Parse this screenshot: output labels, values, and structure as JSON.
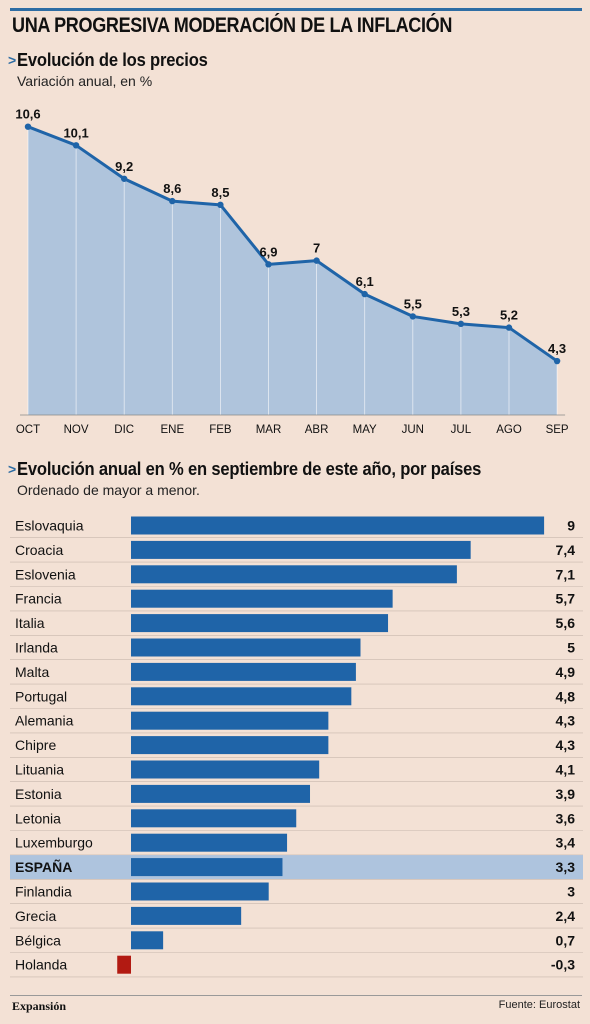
{
  "header": {
    "title": "UNA PROGRESIVA MODERACIÓN DE LA INFLACIÓN"
  },
  "section1": {
    "arrow": ">",
    "title": "Evolución de los precios",
    "subtitle": "Variación anual, en %"
  },
  "section2": {
    "arrow": ">",
    "title": "Evolución anual en % en septiembre de este año, por países",
    "subtitle": "Ordenado de mayor a menor."
  },
  "footer": {
    "brand": "Expansión",
    "source": "Fuente: Eurostat"
  },
  "colors": {
    "line": "#1f64a8",
    "area": "#afc4dc",
    "bar": "#1f64a8",
    "negative": "#b21a12",
    "highlight": "#aec4de",
    "background": "#f3e1d5"
  },
  "chart_data": [
    {
      "type": "area",
      "title": "Evolución de los precios",
      "subtitle": "Variación anual, en %",
      "categories": [
        "OCT",
        "NOV",
        "DIC",
        "ENE",
        "FEB",
        "MAR",
        "ABR",
        "MAY",
        "JUN",
        "JUL",
        "AGO",
        "SEP"
      ],
      "values": [
        10.6,
        10.1,
        9.2,
        8.6,
        8.5,
        6.9,
        7,
        6.1,
        5.5,
        5.3,
        5.2,
        4.3
      ],
      "labels": [
        "10,6",
        "10,1",
        "9,2",
        "8,6",
        "8,5",
        "6,9",
        "7",
        "6,1",
        "5,5",
        "5,3",
        "5,2",
        "4,3"
      ],
      "grid": false
    },
    {
      "type": "bar",
      "orientation": "horizontal",
      "title": "Evolución anual en % en septiembre de este año, por países",
      "subtitle": "Ordenado de mayor a menor.",
      "categories": [
        "Eslovaquia",
        "Croacia",
        "Eslovenia",
        "Francia",
        "Italia",
        "Irlanda",
        "Malta",
        "Portugal",
        "Alemania",
        "Chipre",
        "Lituania",
        "Estonia",
        "Letonia",
        "Luxemburgo",
        "ESPAÑA",
        "Finlandia",
        "Grecia",
        "Bélgica",
        "Holanda"
      ],
      "values": [
        9,
        7.4,
        7.1,
        5.7,
        5.6,
        5,
        4.9,
        4.8,
        4.3,
        4.3,
        4.1,
        3.9,
        3.6,
        3.4,
        3.3,
        3,
        2.4,
        0.7,
        -0.3
      ],
      "labels": [
        "9",
        "7,4",
        "7,1",
        "5,7",
        "5,6",
        "5",
        "4,9",
        "4,8",
        "4,3",
        "4,3",
        "4,1",
        "3,9",
        "3,6",
        "3,4",
        "3,3",
        "3",
        "2,4",
        "0,7",
        "-0,3"
      ],
      "highlight": "ESPAÑA"
    }
  ]
}
